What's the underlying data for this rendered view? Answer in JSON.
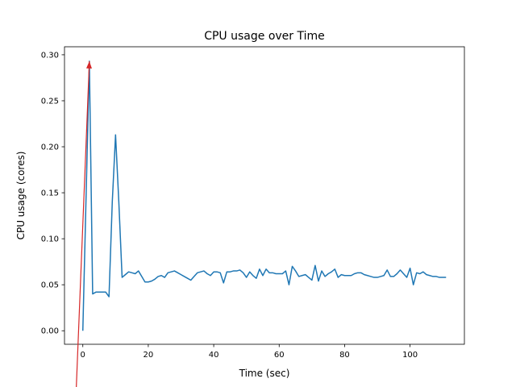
{
  "chart_data": {
    "type": "line",
    "title": "CPU usage over Time",
    "xlabel": "Time (sec)",
    "ylabel": "CPU usage (cores)",
    "xlim": [
      -5.6,
      116.6
    ],
    "ylim": [
      -0.0147,
      0.3087
    ],
    "xticks": [
      0,
      20,
      40,
      60,
      80,
      100
    ],
    "yticks": [
      0.0,
      0.05,
      0.1,
      0.15,
      0.2,
      0.25,
      0.3
    ],
    "xtick_labels": [
      "0",
      "20",
      "40",
      "60",
      "80",
      "100"
    ],
    "ytick_labels": [
      "0.00",
      "0.05",
      "0.10",
      "0.15",
      "0.20",
      "0.25",
      "0.30"
    ],
    "grid": false,
    "legend": "none",
    "series": [
      {
        "color": "#1f77b4",
        "x": [
          0,
          2,
          3,
          4,
          5,
          6,
          7,
          8,
          9,
          10,
          11,
          12,
          13,
          14,
          15,
          16,
          17,
          18,
          19,
          20,
          21,
          22,
          23,
          24,
          25,
          26,
          27,
          28,
          29,
          30,
          31,
          32,
          33,
          34,
          35,
          36,
          37,
          38,
          39,
          40,
          41,
          42,
          43,
          44,
          45,
          46,
          47,
          48,
          49,
          50,
          51,
          52,
          53,
          54,
          55,
          56,
          57,
          58,
          59,
          60,
          61,
          62,
          63,
          64,
          65,
          66,
          67,
          68,
          69,
          70,
          71,
          72,
          73,
          74,
          75,
          76,
          77,
          78,
          79,
          80,
          81,
          82,
          83,
          84,
          85,
          86,
          87,
          88,
          89,
          90,
          91,
          92,
          93,
          94,
          95,
          96,
          97,
          98,
          99,
          100,
          101,
          102,
          103,
          104,
          105,
          106,
          107,
          108,
          109,
          110,
          111
        ],
        "y": [
          0.0,
          0.293,
          0.04,
          0.042,
          0.042,
          0.042,
          0.042,
          0.037,
          0.14,
          0.213,
          0.14,
          0.058,
          0.061,
          0.064,
          0.063,
          0.062,
          0.065,
          0.059,
          0.053,
          0.053,
          0.054,
          0.056,
          0.059,
          0.06,
          0.058,
          0.063,
          0.064,
          0.065,
          0.063,
          0.061,
          0.059,
          0.057,
          0.055,
          0.059,
          0.063,
          0.064,
          0.065,
          0.062,
          0.06,
          0.064,
          0.064,
          0.063,
          0.052,
          0.064,
          0.064,
          0.065,
          0.065,
          0.066,
          0.063,
          0.058,
          0.064,
          0.06,
          0.057,
          0.067,
          0.06,
          0.067,
          0.063,
          0.063,
          0.062,
          0.062,
          0.062,
          0.065,
          0.05,
          0.07,
          0.065,
          0.059,
          0.06,
          0.061,
          0.058,
          0.055,
          0.071,
          0.054,
          0.065,
          0.059,
          0.062,
          0.064,
          0.067,
          0.058,
          0.061,
          0.06,
          0.06,
          0.06,
          0.062,
          0.063,
          0.063,
          0.061,
          0.06,
          0.059,
          0.058,
          0.058,
          0.059,
          0.06,
          0.066,
          0.059,
          0.059,
          0.062,
          0.066,
          0.062,
          0.058,
          0.068,
          0.05,
          0.063,
          0.062,
          0.064,
          0.061,
          0.06,
          0.059,
          0.059,
          0.058,
          0.058,
          0.058
        ]
      }
    ],
    "annotation": {
      "type": "arrow",
      "color": "#d62728",
      "from": [
        -2,
        -0.062
      ],
      "to": [
        2,
        0.293
      ]
    }
  }
}
